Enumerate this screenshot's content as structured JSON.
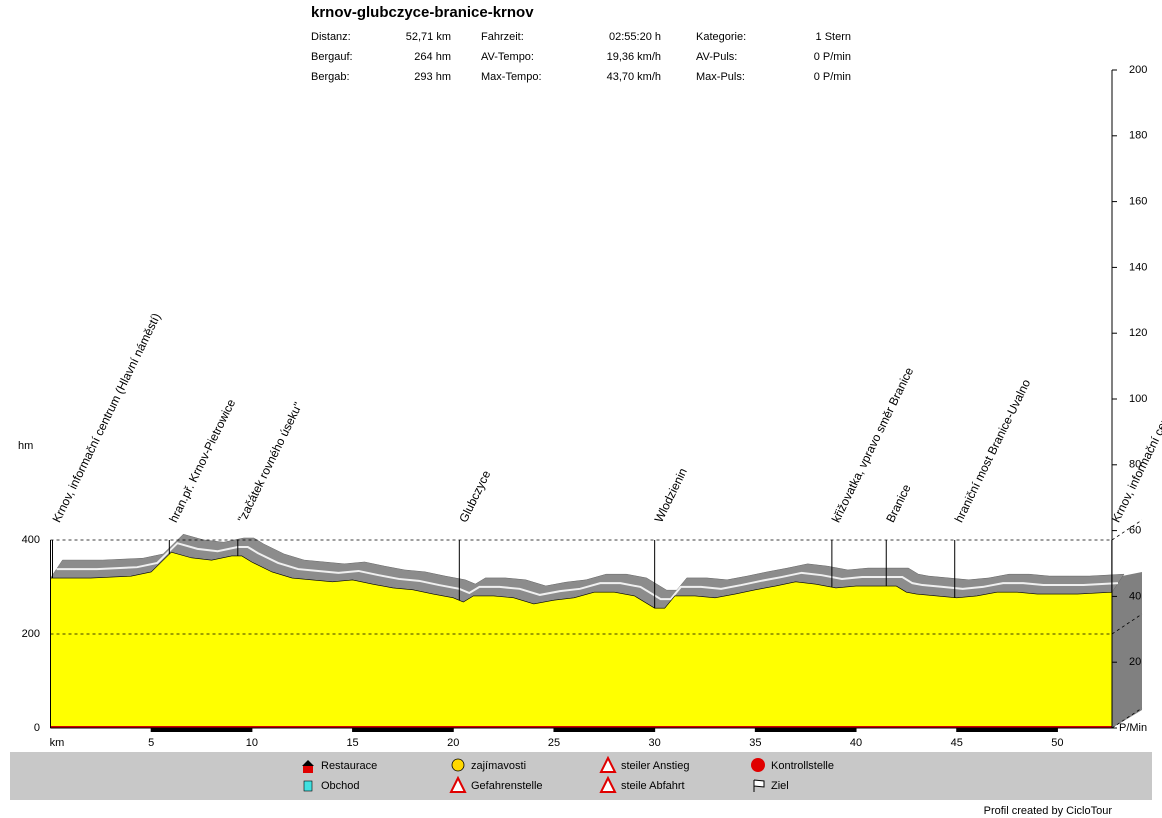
{
  "chart_data": {
    "type": "area",
    "title": "krnov-glubczyce-branice-krnov",
    "stats": [
      [
        {
          "label": "Distanz:",
          "value": "52,71 km"
        },
        {
          "label": "Fahrzeit:",
          "value": "02:55:20 h"
        },
        {
          "label": "Kategorie:",
          "value": "1 Stern"
        }
      ],
      [
        {
          "label": "Bergauf:",
          "value": "264 hm"
        },
        {
          "label": "AV-Tempo:",
          "value": "19,36 km/h"
        },
        {
          "label": "AV-Puls:",
          "value": "0 P/min"
        }
      ],
      [
        {
          "label": "Bergab:",
          "value": "293 hm"
        },
        {
          "label": "Max-Tempo:",
          "value": "43,70 km/h"
        },
        {
          "label": "Max-Puls:",
          "value": "0 P/min"
        }
      ]
    ],
    "ylabel": "hm",
    "xlabel": "km",
    "color": "#ffff00",
    "x": [
      0,
      2,
      4,
      5,
      5.5,
      6,
      7,
      8,
      9,
      9.5,
      10,
      11,
      12,
      13,
      14,
      15,
      16,
      17,
      18,
      19,
      20,
      20.5,
      21,
      22,
      23,
      24,
      25,
      26,
      27,
      28,
      29,
      30,
      30.5,
      31,
      32,
      33,
      34,
      35,
      36,
      37,
      38,
      39,
      40,
      41,
      42,
      42.5,
      43,
      44,
      45,
      46,
      47,
      48,
      49,
      50,
      51,
      52.71
    ],
    "values": [
      319,
      319,
      323,
      332,
      353,
      374,
      362,
      357,
      366,
      366,
      353,
      332,
      319,
      315,
      311,
      315,
      306,
      298,
      294,
      285,
      277,
      268,
      281,
      281,
      277,
      264,
      272,
      277,
      289,
      289,
      281,
      255,
      255,
      281,
      281,
      277,
      285,
      294,
      302,
      311,
      306,
      298,
      302,
      302,
      302,
      289,
      285,
      281,
      277,
      281,
      289,
      289,
      285,
      285,
      285,
      289
    ],
    "xlim": [
      0,
      52.71
    ],
    "xticks": [
      5,
      10,
      15,
      20,
      25,
      30,
      35,
      40,
      45,
      50
    ],
    "ylim": [
      0,
      400
    ],
    "yticks": [
      0,
      200,
      400
    ],
    "y2lim": [
      0,
      200
    ],
    "y2ticks": [
      {
        "value": 0,
        "label": "P/Min"
      },
      20,
      40,
      60,
      80,
      100,
      120,
      140,
      160,
      180,
      200
    ],
    "grid": true,
    "waypoints": [
      {
        "x": 0.1,
        "label": "Krnov, informační centrum (Hlavní náměstí)"
      },
      {
        "x": 5.9,
        "label": "hran.př. Krnov-Pietrowice"
      },
      {
        "x": 9.3,
        "label": "\"začátek rovného úseku\""
      },
      {
        "x": 20.3,
        "label": "Glubczyce"
      },
      {
        "x": 30,
        "label": "Wlodzienin"
      },
      {
        "x": 38.8,
        "label": "křižovatka, vpravo směr Branice"
      },
      {
        "x": 41.5,
        "label": "Branice"
      },
      {
        "x": 44.9,
        "label": "hraniční most Branice-Uvalno"
      },
      {
        "x": 52.7,
        "label": "Krnov, informační centrum (Hlavní náměstí)"
      }
    ],
    "legend": [
      "Restaurace",
      "Obchod",
      "zajímavosti",
      "Gefahrenstelle",
      "steiler Anstieg",
      "steile Abfahrt",
      "Kontrollstelle",
      "Ziel"
    ],
    "footer": "Profil created by CicloTour"
  }
}
